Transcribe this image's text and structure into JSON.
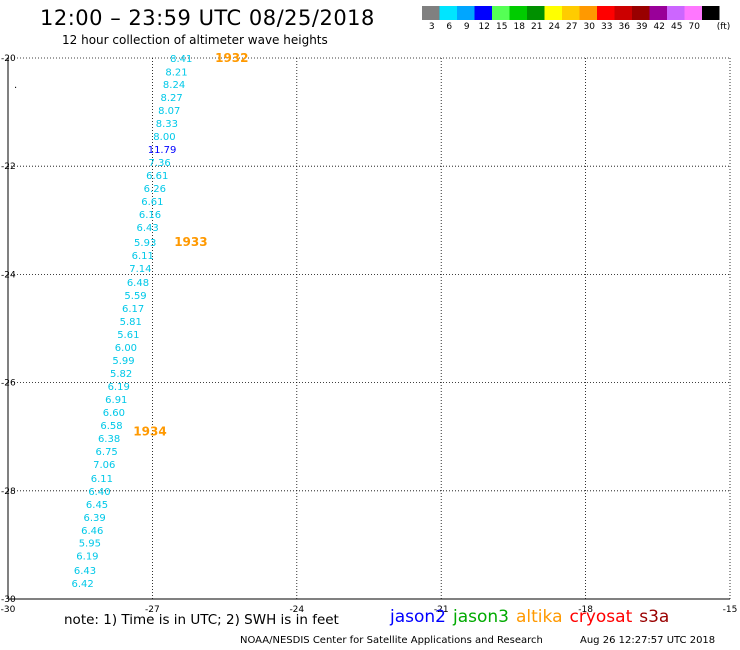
{
  "header": {
    "title": "12:00 – 23:59 UTC 08/25/2018",
    "subtitle": "12 hour collection of altimeter wave heights"
  },
  "legend": {
    "unit": "(ft)",
    "bins": [
      {
        "label": "3",
        "color": "#808080"
      },
      {
        "label": "6",
        "color": "#00e5ff"
      },
      {
        "label": "9",
        "color": "#00a6ff"
      },
      {
        "label": "12",
        "color": "#0000ff"
      },
      {
        "label": "15",
        "color": "#55ff55"
      },
      {
        "label": "18",
        "color": "#00cc00"
      },
      {
        "label": "21",
        "color": "#009000"
      },
      {
        "label": "24",
        "color": "#ffff00"
      },
      {
        "label": "27",
        "color": "#ffcc00"
      },
      {
        "label": "30",
        "color": "#ff9900"
      },
      {
        "label": "33",
        "color": "#ff0000"
      },
      {
        "label": "36",
        "color": "#cc0000"
      },
      {
        "label": "39",
        "color": "#990000"
      },
      {
        "label": "42",
        "color": "#990099"
      },
      {
        "label": "45",
        "color": "#cc66ff"
      },
      {
        "label": "70",
        "color": "#ff77ff"
      },
      {
        "label": "",
        "color": "#000000"
      }
    ]
  },
  "chart_data": {
    "type": "scatter",
    "xlim": [
      -30,
      -15
    ],
    "ylim": [
      -30,
      -20
    ],
    "x_ticks": [
      -30,
      -27,
      -24,
      -21,
      -18,
      -15
    ],
    "y_ticks": [
      -20,
      -22,
      -24,
      -26,
      -28,
      -30
    ],
    "x_tick_labels": [
      "-30",
      "-27",
      "-24",
      "-21",
      "-18",
      "-15"
    ],
    "y_tick_labels": [
      "-20",
      "-22",
      "-24",
      "-26",
      "-28",
      "-30"
    ],
    "grid": true,
    "points": [
      {
        "lon": -26.4,
        "lat": -20.0,
        "label": "8.41",
        "color": "#00c8e8"
      },
      {
        "lon": -26.5,
        "lat": -20.25,
        "label": "8.21",
        "color": "#00c8e8"
      },
      {
        "lon": -26.55,
        "lat": -20.48,
        "label": "8.24",
        "color": "#00c8e8"
      },
      {
        "lon": -26.6,
        "lat": -20.72,
        "label": "8.27",
        "color": "#00c8e8"
      },
      {
        "lon": -26.65,
        "lat": -20.96,
        "label": "8.07",
        "color": "#00c8e8"
      },
      {
        "lon": -26.7,
        "lat": -21.2,
        "label": "8.33",
        "color": "#00c8e8"
      },
      {
        "lon": -26.75,
        "lat": -21.44,
        "label": "8.00",
        "color": "#00c8e8"
      },
      {
        "lon": -26.8,
        "lat": -21.68,
        "label": "11.79",
        "color": "#0000ff"
      },
      {
        "lon": -26.85,
        "lat": -21.92,
        "label": "7.36",
        "color": "#00c8e8"
      },
      {
        "lon": -26.9,
        "lat": -22.16,
        "label": "6.61",
        "color": "#00c8e8"
      },
      {
        "lon": -26.95,
        "lat": -22.4,
        "label": "6.26",
        "color": "#00c8e8"
      },
      {
        "lon": -27.0,
        "lat": -22.64,
        "label": "6.61",
        "color": "#00c8e8"
      },
      {
        "lon": -27.05,
        "lat": -22.88,
        "label": "6.16",
        "color": "#00c8e8"
      },
      {
        "lon": -27.1,
        "lat": -23.12,
        "label": "6.43",
        "color": "#00c8e8"
      },
      {
        "lon": -27.15,
        "lat": -23.4,
        "label": "5.93",
        "color": "#00c8e8"
      },
      {
        "lon": -27.2,
        "lat": -23.64,
        "label": "6.11",
        "color": "#00c8e8"
      },
      {
        "lon": -27.25,
        "lat": -23.88,
        "label": "7.14",
        "color": "#00c8e8"
      },
      {
        "lon": -27.3,
        "lat": -24.14,
        "label": "6.48",
        "color": "#00c8e8"
      },
      {
        "lon": -27.35,
        "lat": -24.38,
        "label": "5.59",
        "color": "#00c8e8"
      },
      {
        "lon": -27.4,
        "lat": -24.62,
        "label": "6.17",
        "color": "#00c8e8"
      },
      {
        "lon": -27.45,
        "lat": -24.86,
        "label": "5.81",
        "color": "#00c8e8"
      },
      {
        "lon": -27.5,
        "lat": -25.1,
        "label": "5.61",
        "color": "#00c8e8"
      },
      {
        "lon": -27.55,
        "lat": -25.34,
        "label": "6.00",
        "color": "#00c8e8"
      },
      {
        "lon": -27.6,
        "lat": -25.58,
        "label": "5.99",
        "color": "#00c8e8"
      },
      {
        "lon": -27.65,
        "lat": -25.82,
        "label": "5.82",
        "color": "#00c8e8"
      },
      {
        "lon": -27.7,
        "lat": -26.06,
        "label": "6.19",
        "color": "#00c8e8"
      },
      {
        "lon": -27.75,
        "lat": -26.3,
        "label": "6.91",
        "color": "#00c8e8"
      },
      {
        "lon": -27.8,
        "lat": -26.54,
        "label": "6.60",
        "color": "#00c8e8"
      },
      {
        "lon": -27.85,
        "lat": -26.78,
        "label": "6.58",
        "color": "#00c8e8"
      },
      {
        "lon": -27.9,
        "lat": -27.02,
        "label": "6.38",
        "color": "#00c8e8"
      },
      {
        "lon": -27.95,
        "lat": -27.26,
        "label": "6.75",
        "color": "#00c8e8"
      },
      {
        "lon": -28.0,
        "lat": -27.5,
        "label": "7.06",
        "color": "#00c8e8"
      },
      {
        "lon": -28.05,
        "lat": -27.76,
        "label": "6.11",
        "color": "#00c8e8"
      },
      {
        "lon": -28.1,
        "lat": -28.0,
        "label": "6.40",
        "color": "#00c8e8"
      },
      {
        "lon": -28.15,
        "lat": -28.24,
        "label": "6.45",
        "color": "#00c8e8"
      },
      {
        "lon": -28.2,
        "lat": -28.48,
        "label": "6.39",
        "color": "#00c8e8"
      },
      {
        "lon": -28.25,
        "lat": -28.72,
        "label": "6.46",
        "color": "#00c8e8"
      },
      {
        "lon": -28.3,
        "lat": -28.96,
        "label": "5.95",
        "color": "#00c8e8"
      },
      {
        "lon": -28.35,
        "lat": -29.2,
        "label": "6.19",
        "color": "#00c8e8"
      },
      {
        "lon": -28.4,
        "lat": -29.46,
        "label": "6.43",
        "color": "#00c8e8"
      },
      {
        "lon": -28.45,
        "lat": -29.7,
        "label": "6.42",
        "color": "#00c8e8"
      }
    ],
    "time_labels": [
      {
        "lon": -25.35,
        "lat": -20.0,
        "label": "1932",
        "color": "#ff9900"
      },
      {
        "lon": -26.2,
        "lat": -23.4,
        "label": "1933",
        "color": "#ff9900"
      },
      {
        "lon": -27.05,
        "lat": -26.9,
        "label": "1934",
        "color": "#ff9900"
      }
    ]
  },
  "footer": {
    "note": "note:  1) Time is in UTC;  2) SWH is in feet",
    "satellites": [
      {
        "name": "jason2",
        "color": "#0000ff"
      },
      {
        "name": "jason3",
        "color": "#00aa00"
      },
      {
        "name": "altika",
        "color": "#ff9900"
      },
      {
        "name": "cryosat",
        "color": "#ff0000"
      },
      {
        "name": "s3a",
        "color": "#990000"
      }
    ],
    "credit": "NOAA/NESDIS Center for Satellite Applications and Research",
    "timestamp": "Aug 26 12:27:57 UTC 2018"
  }
}
